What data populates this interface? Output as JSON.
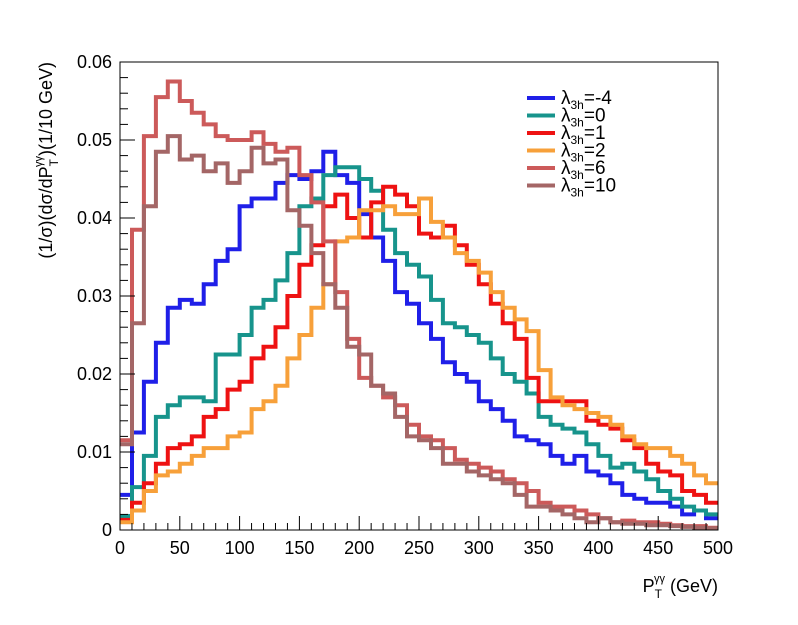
{
  "chart_data": {
    "type": "line",
    "style": "step-histogram",
    "xlabel": {
      "main": "P",
      "sub": "T",
      "sup": "γγ",
      "unit": " (GeV)"
    },
    "ylabel": {
      "prefix": "(1/σ)(dσ/dP",
      "sub": "T",
      "sup": "γγ",
      "suffix": ")(1/10 GeV)"
    },
    "xlim": [
      0,
      500
    ],
    "ylim": [
      0,
      0.06
    ],
    "bin_width": 10,
    "x_ticks": [
      "0",
      "50",
      "100",
      "150",
      "200",
      "250",
      "300",
      "350",
      "400",
      "450",
      "500"
    ],
    "y_ticks": [
      "0",
      "0.01",
      "0.02",
      "0.03",
      "0.04",
      "0.05",
      "0.06"
    ],
    "x_tick_values": [
      0,
      50,
      100,
      150,
      200,
      250,
      300,
      350,
      400,
      450,
      500
    ],
    "y_tick_values": [
      0,
      0.01,
      0.02,
      0.03,
      0.04,
      0.05,
      0.06
    ],
    "grid": false,
    "legend_position": "top-right",
    "series": [
      {
        "name": "λ3h=-4",
        "symbol": "λ",
        "sub": "3h",
        "value": "=-4",
        "color": "#1f1fe8",
        "values": [
          0.0045,
          0.0125,
          0.019,
          0.024,
          0.0285,
          0.0295,
          0.029,
          0.0315,
          0.0345,
          0.036,
          0.0415,
          0.0425,
          0.0425,
          0.0445,
          0.0455,
          0.045,
          0.046,
          0.0485,
          0.0455,
          0.0445,
          0.0405,
          0.0375,
          0.0345,
          0.0305,
          0.029,
          0.0265,
          0.0245,
          0.0215,
          0.02,
          0.019,
          0.0165,
          0.0155,
          0.014,
          0.012,
          0.0115,
          0.011,
          0.0095,
          0.0085,
          0.0095,
          0.0075,
          0.007,
          0.006,
          0.0045,
          0.004,
          0.0035,
          0.0035,
          0.003,
          0.002,
          0.0025,
          0.0015
        ]
      },
      {
        "name": "λ3h=0",
        "symbol": "λ",
        "sub": "3h",
        "value": "=0",
        "color": "#17948c",
        "values": [
          0.0018,
          0.0055,
          0.0095,
          0.0145,
          0.016,
          0.017,
          0.017,
          0.0165,
          0.0225,
          0.0225,
          0.025,
          0.0285,
          0.0295,
          0.032,
          0.0355,
          0.0415,
          0.0425,
          0.0455,
          0.0465,
          0.0465,
          0.045,
          0.0435,
          0.0385,
          0.0355,
          0.034,
          0.0325,
          0.0295,
          0.0265,
          0.026,
          0.025,
          0.024,
          0.022,
          0.02,
          0.019,
          0.0175,
          0.0145,
          0.0135,
          0.013,
          0.0125,
          0.011,
          0.0095,
          0.008,
          0.0085,
          0.0075,
          0.0065,
          0.005,
          0.004,
          0.003,
          0.0025,
          0.002
        ]
      },
      {
        "name": "λ3h=1",
        "symbol": "λ",
        "sub": "3h",
        "value": "=1",
        "color": "#ee1212",
        "values": [
          0.0013,
          0.0035,
          0.006,
          0.0085,
          0.0105,
          0.011,
          0.012,
          0.0145,
          0.0155,
          0.018,
          0.019,
          0.022,
          0.0235,
          0.026,
          0.03,
          0.034,
          0.0365,
          0.0415,
          0.043,
          0.04,
          0.0375,
          0.042,
          0.044,
          0.043,
          0.0415,
          0.038,
          0.0375,
          0.039,
          0.0365,
          0.034,
          0.0315,
          0.029,
          0.0265,
          0.0245,
          0.0195,
          0.0165,
          0.0165,
          0.0165,
          0.0165,
          0.014,
          0.0135,
          0.013,
          0.0115,
          0.0105,
          0.0085,
          0.0075,
          0.007,
          0.005,
          0.0045,
          0.0035
        ]
      },
      {
        "name": "λ3h=2",
        "symbol": "λ",
        "sub": "3h",
        "value": "=2",
        "color": "#f7a03a",
        "values": [
          0.001,
          0.0025,
          0.005,
          0.007,
          0.0075,
          0.0085,
          0.0095,
          0.0105,
          0.0105,
          0.012,
          0.0125,
          0.0155,
          0.0165,
          0.0185,
          0.022,
          0.025,
          0.0285,
          0.0315,
          0.037,
          0.0375,
          0.041,
          0.041,
          0.0415,
          0.0405,
          0.0405,
          0.0425,
          0.0395,
          0.0375,
          0.0355,
          0.0345,
          0.033,
          0.0305,
          0.0285,
          0.027,
          0.0255,
          0.0205,
          0.017,
          0.016,
          0.0155,
          0.015,
          0.0145,
          0.0135,
          0.012,
          0.011,
          0.0105,
          0.0105,
          0.0095,
          0.0085,
          0.007,
          0.006
        ]
      },
      {
        "name": "λ3h=6",
        "symbol": "λ",
        "sub": "3h",
        "value": "=6",
        "color": "#cc5a5a",
        "values": [
          0.0115,
          0.0385,
          0.0505,
          0.0555,
          0.0575,
          0.055,
          0.0535,
          0.052,
          0.0505,
          0.05,
          0.05,
          0.051,
          0.0495,
          0.0485,
          0.049,
          0.0455,
          0.042,
          0.037,
          0.0305,
          0.0245,
          0.0195,
          0.0185,
          0.017,
          0.016,
          0.0135,
          0.012,
          0.0115,
          0.0105,
          0.009,
          0.0085,
          0.008,
          0.0075,
          0.0065,
          0.006,
          0.005,
          0.0035,
          0.003,
          0.003,
          0.0025,
          0.002,
          0.0015,
          0.001,
          0.0012,
          0.001,
          0.001,
          0.0008,
          0.0006,
          0.0005,
          0.0005,
          0.0003
        ]
      },
      {
        "name": "λ3h=10",
        "symbol": "λ",
        "sub": "3h",
        "value": "=10",
        "color": "#a46666",
        "values": [
          0.011,
          0.0265,
          0.0415,
          0.0485,
          0.0505,
          0.0475,
          0.048,
          0.046,
          0.047,
          0.0445,
          0.046,
          0.049,
          0.047,
          0.0475,
          0.041,
          0.039,
          0.0355,
          0.0315,
          0.0285,
          0.0235,
          0.0225,
          0.0185,
          0.0175,
          0.0145,
          0.012,
          0.0115,
          0.0105,
          0.0085,
          0.0085,
          0.0075,
          0.007,
          0.0065,
          0.006,
          0.0045,
          0.003,
          0.003,
          0.0025,
          0.002,
          0.0015,
          0.001,
          0.0015,
          0.001,
          0.0008,
          0.0008,
          0.0006,
          0.0006,
          0.0005,
          0.0004,
          0.0003,
          0.0002
        ]
      }
    ]
  }
}
